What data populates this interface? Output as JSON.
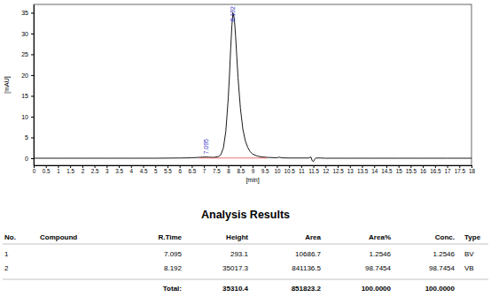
{
  "chart_data": {
    "type": "line",
    "x_label": "[min]",
    "y_label": "[mAU]",
    "x": [
      0,
      1,
      2,
      3,
      4,
      5,
      6,
      6.5,
      6.8,
      7.0,
      7.095,
      7.2,
      7.4,
      7.6,
      7.7,
      7.8,
      7.9,
      8.0,
      8.05,
      8.1,
      8.15,
      8.192,
      8.25,
      8.3,
      8.35,
      8.4,
      8.5,
      8.6,
      8.7,
      8.8,
      8.9,
      9.0,
      9.2,
      9.4,
      9.6,
      10.0,
      10.1,
      10.2,
      10.5,
      11.0,
      11.3,
      11.4,
      11.45,
      11.5,
      11.55,
      11.6,
      11.8,
      12,
      13,
      14,
      15,
      16,
      17,
      18
    ],
    "series": [
      {
        "color": "#000000",
        "values": [
          0,
          0,
          0,
          0,
          0,
          0,
          0.05,
          0.1,
          0.2,
          0.28,
          0.3,
          0.25,
          0.2,
          0.4,
          0.9,
          2.5,
          6.5,
          14.5,
          20,
          26.5,
          32,
          35.0,
          33.5,
          29.5,
          24.5,
          19.5,
          12,
          7,
          4.2,
          2.6,
          1.6,
          1.0,
          0.5,
          0.3,
          0.2,
          0.1,
          0.25,
          0.1,
          0.05,
          0.05,
          0.05,
          0.3,
          -0.6,
          -0.8,
          -0.3,
          0.05,
          0.05,
          0,
          0,
          0,
          0,
          0,
          0,
          0
        ]
      },
      {
        "color": "#e03030",
        "values": [
          null,
          null,
          null,
          null,
          null,
          null,
          null,
          null,
          0.05,
          0.05,
          0.05,
          0.05,
          0.05,
          0.05,
          0.05,
          0.05,
          0.05,
          0.05,
          0.05,
          0.05,
          0.05,
          0.05,
          0.05,
          0.05,
          0.05,
          0.05,
          0.05,
          0.05,
          0.05,
          0.05,
          0.05,
          0.05,
          0.05,
          0.05,
          0.05,
          null,
          null,
          null,
          null,
          null,
          null,
          null,
          null,
          null,
          null,
          null,
          null,
          null,
          null,
          null,
          null,
          null,
          null,
          null
        ]
      }
    ],
    "annotations": [
      {
        "x": 7.095,
        "y": 0.3,
        "text": "7.095"
      },
      {
        "x": 8.192,
        "y": 35.0,
        "text": "8.192"
      }
    ],
    "xlim": [
      0,
      18
    ],
    "xticks": [
      0,
      0.5,
      1,
      1.5,
      2,
      2.5,
      3,
      3.5,
      4,
      4.5,
      5,
      5.5,
      6,
      6.5,
      7,
      7.5,
      8,
      8.5,
      9,
      9.5,
      10,
      10.5,
      11,
      11.5,
      12,
      12.5,
      13,
      13.5,
      14,
      14.5,
      15,
      15.5,
      16,
      16.5,
      17,
      17.5,
      18
    ],
    "ylim": [
      -1.7,
      37
    ],
    "yticks": [
      0,
      5,
      10,
      15,
      20,
      25,
      30,
      35
    ],
    "grid": false
  },
  "table": {
    "title": "Analysis Results",
    "columns": [
      "No.",
      "Compound",
      "R.Time",
      "Height",
      "Area",
      "Area%",
      "Conc.",
      "Type"
    ],
    "rows": [
      [
        "1",
        null,
        "7.095",
        "293.1",
        "10686.7",
        "1.2546",
        "1.2546",
        "BV"
      ],
      [
        "2",
        null,
        "8.192",
        "35017.3",
        "841136.5",
        "98.7454",
        "98.7454",
        "VB"
      ]
    ],
    "total": [
      null,
      null,
      "Total:",
      "35310.4",
      "851823.2",
      "100.0000",
      "100.0000",
      null
    ]
  }
}
